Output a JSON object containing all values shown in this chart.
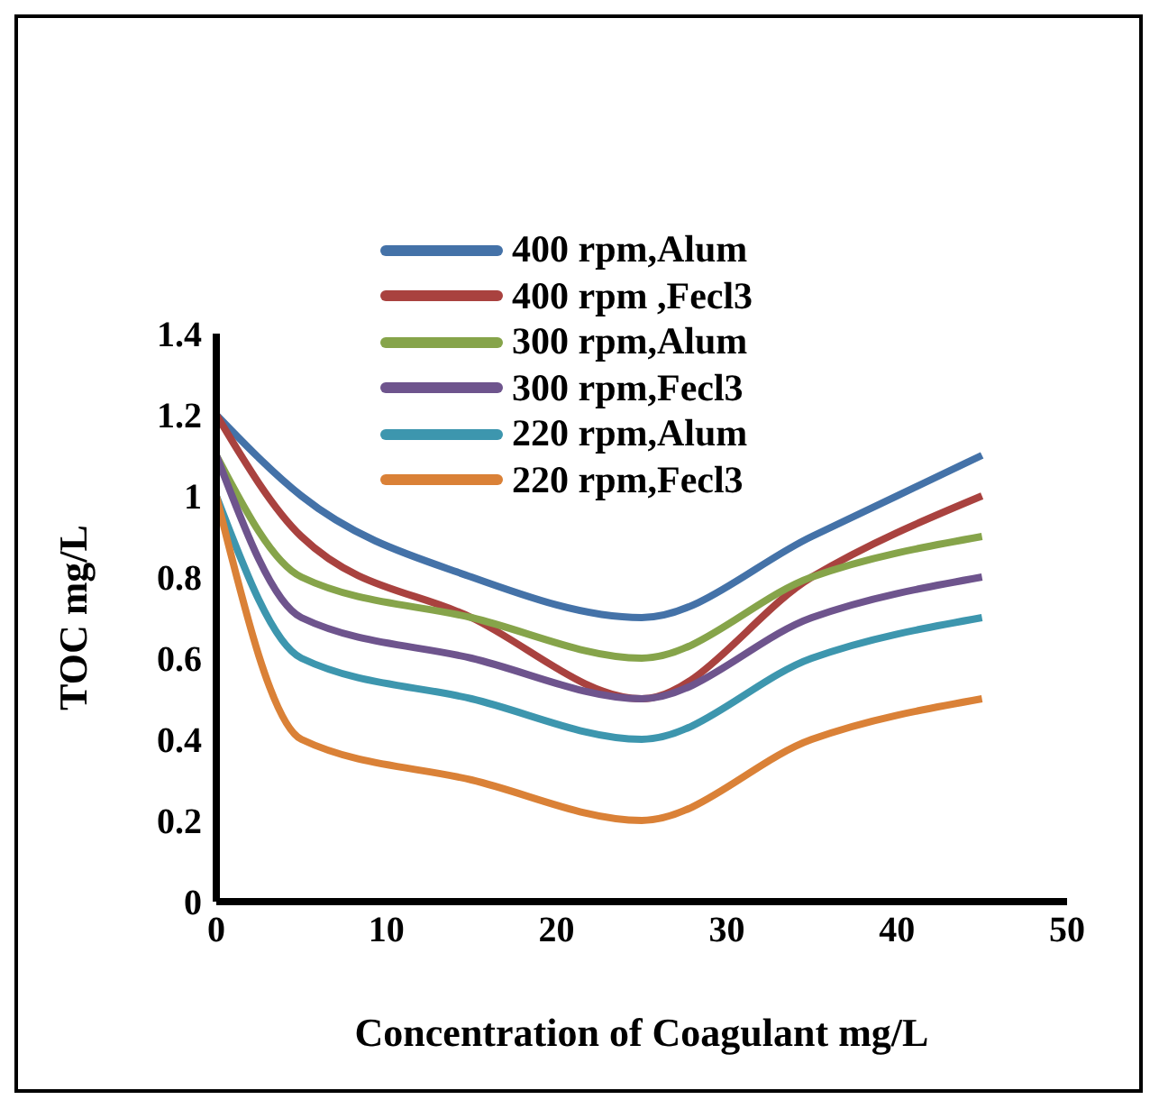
{
  "chart_data": {
    "type": "line",
    "xlabel": "Concentration of Coagulant mg/L",
    "ylabel": "TOC mg/L",
    "x": [
      0,
      5,
      15,
      25,
      35,
      45
    ],
    "series": [
      {
        "name": "400 rpm,Alum",
        "color": "#4472a8",
        "values": [
          1.2,
          1.0,
          0.8,
          0.7,
          0.9,
          1.1
        ]
      },
      {
        "name": "400 rpm ,Fecl3",
        "color": "#a9423f",
        "values": [
          1.2,
          0.9,
          0.7,
          0.5,
          0.8,
          1.0
        ]
      },
      {
        "name": "300 rpm,Alum",
        "color": "#86a44a",
        "values": [
          1.1,
          0.8,
          0.7,
          0.6,
          0.8,
          0.9
        ]
      },
      {
        "name": "300 rpm,Fecl3",
        "color": "#6e548d",
        "values": [
          1.1,
          0.7,
          0.6,
          0.5,
          0.7,
          0.8
        ]
      },
      {
        "name": "220 rpm,Alum",
        "color": "#3d96ae",
        "values": [
          1.0,
          0.6,
          0.5,
          0.4,
          0.6,
          0.7
        ]
      },
      {
        "name": "220 rpm,Fecl3",
        "color": "#da8137",
        "values": [
          1.0,
          0.4,
          0.3,
          0.2,
          0.4,
          0.5
        ]
      }
    ],
    "xlim": [
      0,
      50
    ],
    "xticks": [
      0,
      10,
      20,
      30,
      40,
      50
    ],
    "ylim": [
      0,
      1.4
    ],
    "yticks": [
      0,
      0.2,
      0.4,
      0.6,
      0.8,
      1,
      1.2,
      1.4
    ],
    "grid": false,
    "legend": "top",
    "marker": "none",
    "line_style": "solid"
  }
}
